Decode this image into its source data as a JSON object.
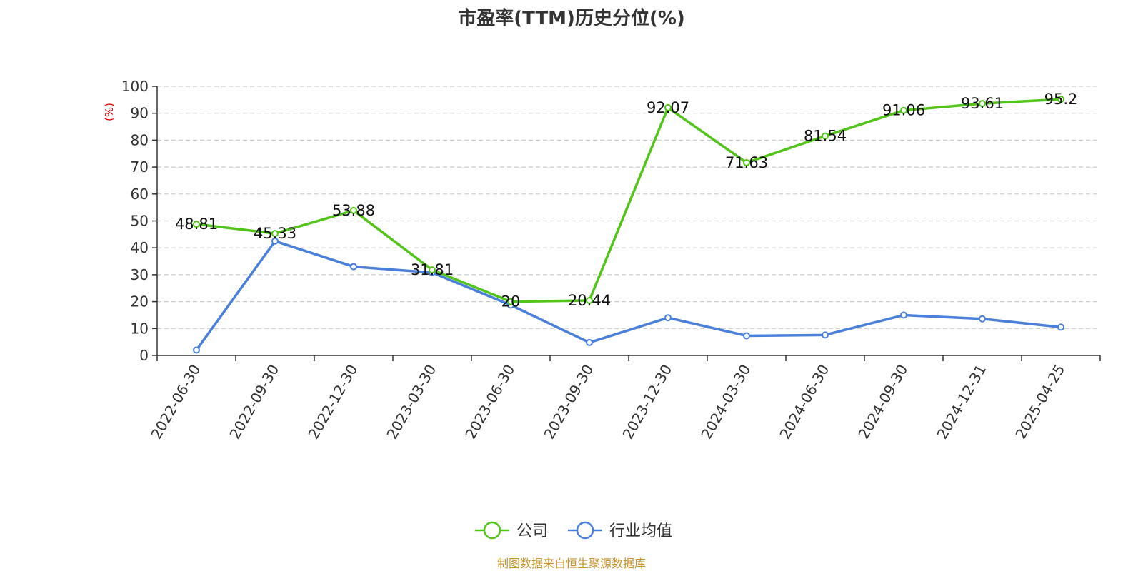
{
  "chart_data": {
    "type": "line",
    "title": "市盈率(TTM)历史分位(%)",
    "ylabel": "(%)",
    "ylim": [
      0,
      100
    ],
    "yticks": [
      0,
      10,
      20,
      30,
      40,
      50,
      60,
      70,
      80,
      90,
      100
    ],
    "x": [
      "2022-06-30",
      "2022-09-30",
      "2022-12-30",
      "2023-03-30",
      "2023-06-30",
      "2023-09-30",
      "2023-12-30",
      "2024-03-30",
      "2024-06-30",
      "2024-09-30",
      "2024-12-31",
      "2025-04-25"
    ],
    "series": [
      {
        "name": "公司",
        "color": "#52c41a",
        "values": [
          48.81,
          45.33,
          53.88,
          31.81,
          20,
          20.44,
          92.07,
          71.63,
          81.54,
          91.06,
          93.61,
          95.2
        ],
        "labels": [
          "48.81",
          "45.33",
          "53.88",
          "31.81",
          "20",
          "20.44",
          "92.07",
          "71.63",
          "81.54",
          "91.06",
          "93.61",
          "95.2"
        ]
      },
      {
        "name": "行业均值",
        "color": "#4a80d9",
        "values": [
          2,
          42.5,
          33,
          30.8,
          18.7,
          4.8,
          14,
          7.3,
          7.6,
          15,
          13.6,
          10.5
        ]
      }
    ],
    "grid": true,
    "legend_position": "bottom-center",
    "ylabel_color": "#e00000"
  },
  "footer": {
    "source": "制图数据来自恒生聚源数据库",
    "color": "#c8932a"
  }
}
